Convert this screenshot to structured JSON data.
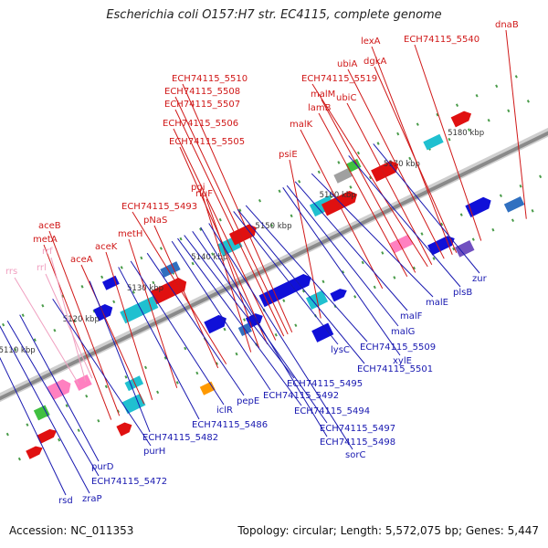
{
  "title": "Escherichia coli O157:H7 str. EC4115, complete genome",
  "footer": {
    "accession": "Accession: NC_011353",
    "summary": "Topology: circular; Length: 5,572,075 bp; Genes: 5,447"
  },
  "colors": {
    "top_label": "#d01818",
    "bottom_label": "#1818b0",
    "rna_label": "#f0a0c0",
    "backbone": "#999999",
    "tick": "#2a8a2a"
  },
  "ticks": [
    "5110 kbp",
    "5120 kbp",
    "5130 kbp",
    "5140 kbp",
    "5150 kbp",
    "5160 kbp",
    "5170 kbp",
    "5180 kbp"
  ],
  "labels_top": [
    "dnaB",
    "ECH74115_5540",
    "lexA",
    "dgkA",
    "ubiA",
    "ECH74115_5519",
    "malM",
    "ubiC",
    "lamB",
    "malK",
    "ECH74115_5510",
    "ECH74115_5508",
    "ECH74115_5507",
    "ECH74115_5506",
    "psiE",
    "ECH74115_5505",
    "pgi",
    "rluF",
    "ECH74115_5493",
    "pNaS",
    "metH",
    "aceB",
    "metA",
    "aceA",
    "aceK"
  ],
  "labels_rna": [
    "rrs",
    "rrf",
    "rrl"
  ],
  "labels_bottom": [
    "rsd",
    "zraP",
    "ECH74115_5472",
    "purD",
    "purH",
    "ECH74115_5482",
    "ECH74115_5486",
    "iclR",
    "pepE",
    "ECH74115_5492",
    "ECH74115_5495",
    "ECH74115_5494",
    "ECH74115_5497",
    "ECH74115_5498",
    "sorC",
    "ECH74115_5501",
    "lysC",
    "ECH74115_5509",
    "xylE",
    "malG",
    "malF",
    "malE",
    "plsB",
    "zur"
  ]
}
